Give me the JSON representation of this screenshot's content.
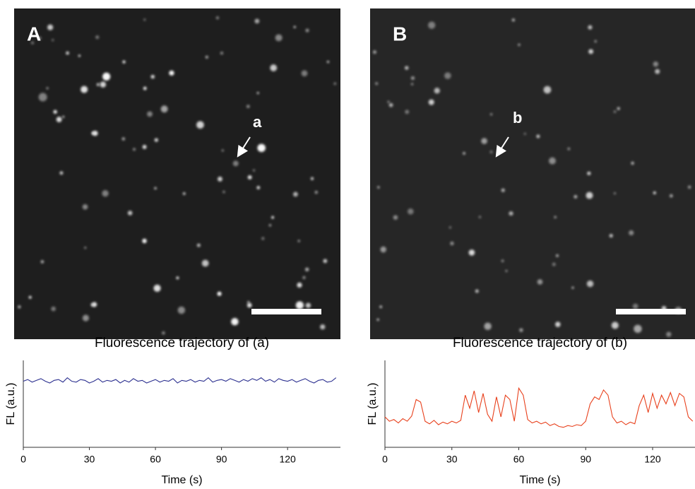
{
  "images": [
    {
      "label": "A",
      "marker": "a"
    },
    {
      "label": "B",
      "marker": "b"
    }
  ],
  "chart_data": [
    {
      "type": "line",
      "title": "Fluorescence trajectory of (a)",
      "x_label": "Time (s)",
      "y_label": "FL (a.u.)",
      "xlim": [
        0,
        144
      ],
      "ylim": [
        0,
        1
      ],
      "xticks": [
        0,
        30,
        60,
        90,
        120
      ],
      "x": [
        0,
        2,
        4,
        6,
        8,
        10,
        12,
        14,
        16,
        18,
        20,
        22,
        24,
        26,
        28,
        30,
        32,
        34,
        36,
        38,
        40,
        42,
        44,
        46,
        48,
        50,
        52,
        54,
        56,
        58,
        60,
        62,
        64,
        66,
        68,
        70,
        72,
        74,
        76,
        78,
        80,
        82,
        84,
        86,
        88,
        90,
        92,
        94,
        96,
        98,
        100,
        102,
        104,
        106,
        108,
        110,
        112,
        114,
        116,
        118,
        120,
        122,
        124,
        126,
        128,
        130,
        132,
        134,
        136,
        138,
        140,
        142
      ],
      "series": [
        {
          "name": "a",
          "color": "#2b2f8f",
          "values": [
            0.76,
            0.78,
            0.75,
            0.77,
            0.79,
            0.76,
            0.74,
            0.77,
            0.78,
            0.75,
            0.8,
            0.76,
            0.75,
            0.78,
            0.77,
            0.74,
            0.76,
            0.79,
            0.75,
            0.77,
            0.76,
            0.78,
            0.74,
            0.77,
            0.75,
            0.79,
            0.76,
            0.77,
            0.74,
            0.76,
            0.78,
            0.75,
            0.77,
            0.76,
            0.79,
            0.74,
            0.77,
            0.76,
            0.78,
            0.75,
            0.77,
            0.76,
            0.8,
            0.75,
            0.77,
            0.78,
            0.76,
            0.79,
            0.77,
            0.75,
            0.78,
            0.76,
            0.79,
            0.77,
            0.8,
            0.76,
            0.78,
            0.75,
            0.79,
            0.77,
            0.76,
            0.78,
            0.75,
            0.77,
            0.79,
            0.76,
            0.74,
            0.77,
            0.78,
            0.75,
            0.76,
            0.8
          ]
        }
      ]
    },
    {
      "type": "line",
      "title": "Fluorescence trajectory of (b)",
      "x_label": "Time (s)",
      "y_label": "FL (a.u.)",
      "xlim": [
        0,
        139
      ],
      "ylim": [
        0,
        1
      ],
      "xticks": [
        0,
        30,
        60,
        90,
        120
      ],
      "x": [
        0,
        2,
        4,
        6,
        8,
        10,
        12,
        14,
        16,
        18,
        20,
        22,
        24,
        26,
        28,
        30,
        32,
        34,
        36,
        38,
        40,
        42,
        44,
        46,
        48,
        50,
        52,
        54,
        56,
        58,
        60,
        62,
        64,
        66,
        68,
        70,
        72,
        74,
        76,
        78,
        80,
        82,
        84,
        86,
        88,
        90,
        92,
        94,
        96,
        98,
        100,
        102,
        104,
        106,
        108,
        110,
        112,
        114,
        116,
        118,
        120,
        122,
        124,
        126,
        128,
        130,
        132,
        134,
        136,
        138
      ],
      "series": [
        {
          "name": "b",
          "color": "#e8401c",
          "values": [
            0.35,
            0.3,
            0.32,
            0.28,
            0.33,
            0.3,
            0.36,
            0.55,
            0.52,
            0.3,
            0.27,
            0.31,
            0.26,
            0.29,
            0.27,
            0.3,
            0.28,
            0.31,
            0.6,
            0.45,
            0.65,
            0.4,
            0.62,
            0.38,
            0.3,
            0.58,
            0.35,
            0.6,
            0.55,
            0.3,
            0.68,
            0.6,
            0.32,
            0.28,
            0.3,
            0.27,
            0.29,
            0.25,
            0.27,
            0.24,
            0.23,
            0.25,
            0.24,
            0.26,
            0.25,
            0.3,
            0.5,
            0.58,
            0.55,
            0.66,
            0.6,
            0.35,
            0.28,
            0.3,
            0.26,
            0.29,
            0.27,
            0.48,
            0.6,
            0.4,
            0.62,
            0.45,
            0.6,
            0.5,
            0.63,
            0.48,
            0.62,
            0.58,
            0.35,
            0.3
          ]
        }
      ]
    }
  ]
}
